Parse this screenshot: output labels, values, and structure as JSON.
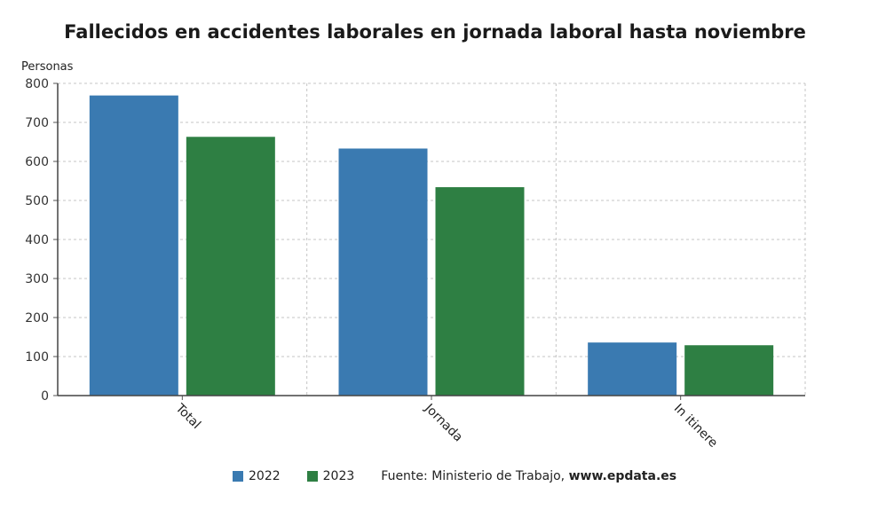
{
  "chart_data": {
    "type": "bar",
    "title": "Fallecidos en accidentes laborales en jornada laboral hasta noviembre",
    "ylabel": "Personas",
    "xlabel": "",
    "categories": [
      "Total",
      "Jornada",
      "In itinere"
    ],
    "series": [
      {
        "name": "2022",
        "color": "#3a7ab1",
        "values": [
          769,
          633,
          136
        ]
      },
      {
        "name": "2023",
        "color": "#2e7f43",
        "values": [
          663,
          534,
          129
        ]
      }
    ],
    "ylim": [
      0,
      800
    ],
    "yticks": [
      0,
      100,
      200,
      300,
      400,
      500,
      600,
      700,
      800
    ],
    "grid": true,
    "legend_position": "bottom"
  },
  "source": {
    "prefix": "Fuente: Ministerio de Trabajo, ",
    "site": "www.epdata.es"
  }
}
